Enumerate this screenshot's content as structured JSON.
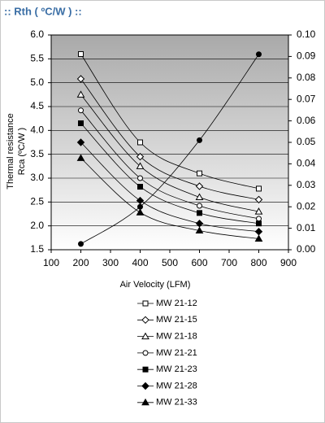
{
  "chart_data": {
    "type": "line",
    "title": ":: Rth ( ºC/W ) ::",
    "x_label": "Air Velocity (LFM)",
    "y_label": [
      "Thermal resistance",
      "Rca (ºC/W )"
    ],
    "x": [
      200,
      400,
      600,
      800
    ],
    "xlim": [
      100,
      900
    ],
    "xticks": [
      100,
      200,
      300,
      400,
      500,
      600,
      700,
      800,
      900
    ],
    "ylim": [
      1.5,
      6.0
    ],
    "yticks": [
      1.5,
      {
        "value": 2,
        "label": "2.0"
      },
      2.5,
      {
        "value": 3,
        "label": "3.0"
      },
      3.5,
      {
        "value": 4,
        "label": "4.0"
      },
      4.5,
      {
        "value": 5,
        "label": "5.0"
      },
      5.5,
      {
        "value": 6,
        "label": "6.0"
      }
    ],
    "y2lim": [
      0,
      0.1
    ],
    "y2ticks": [
      {
        "value": 0,
        "label": "0.00"
      },
      {
        "value": 0.01,
        "label": "0.01"
      },
      {
        "value": 0.02,
        "label": "0.02"
      },
      {
        "value": 0.03,
        "label": "0.03"
      },
      {
        "value": 0.04,
        "label": "0.04"
      },
      {
        "value": 0.05,
        "label": "0.05"
      },
      {
        "value": 0.06,
        "label": "0.06"
      },
      {
        "value": 0.07,
        "label": "0.07"
      },
      {
        "value": 0.08,
        "label": "0.08"
      },
      {
        "value": 0.09,
        "label": "0.09"
      },
      {
        "value": 0.1,
        "label": "0.10"
      }
    ],
    "grid": true,
    "series": [
      {
        "name": "MW 21-12",
        "color": "#000000",
        "marker": "square-open",
        "values": [
          5.6,
          3.75,
          3.1,
          2.78
        ]
      },
      {
        "name": "MW 21-15",
        "color": "#000000",
        "marker": "diamond-open",
        "values": [
          5.08,
          3.45,
          2.83,
          2.55
        ]
      },
      {
        "name": "MW 21-18",
        "color": "#000000",
        "marker": "triangle-open",
        "values": [
          4.75,
          3.25,
          2.6,
          2.3
        ]
      },
      {
        "name": "MW 21-21",
        "color": "#000000",
        "marker": "circle-open",
        "values": [
          4.42,
          3.0,
          2.42,
          2.15
        ]
      },
      {
        "name": "MW 21-23",
        "color": "#000000",
        "marker": "square",
        "values": [
          4.15,
          2.82,
          2.27,
          2.05
        ]
      },
      {
        "name": "MW 21-28",
        "color": "#000000",
        "marker": "diamond",
        "values": [
          3.75,
          2.53,
          2.05,
          1.88
        ]
      },
      {
        "name": "MW 21-33",
        "color": "#000000",
        "marker": "triangle",
        "values": [
          3.42,
          2.28,
          1.9,
          1.73
        ]
      },
      {
        "color": "#000000",
        "marker": "circle",
        "axis": "y2",
        "values": [
          0.0027,
          0.02,
          0.051,
          0.091
        ]
      }
    ]
  }
}
